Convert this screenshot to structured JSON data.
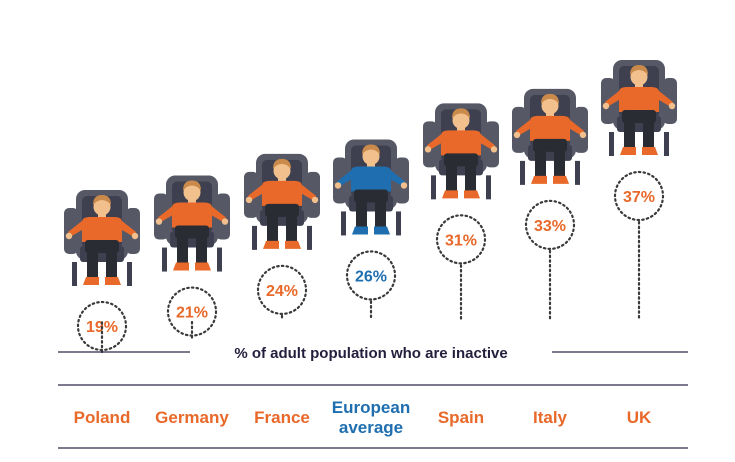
{
  "chart_data": {
    "type": "bar",
    "title": "",
    "xlabel": "% of adult population who are inactive",
    "ylabel": "",
    "categories": [
      "Poland",
      "Germany",
      "France",
      "European average",
      "Spain",
      "Italy",
      "UK"
    ],
    "category_lines": [
      [
        "Poland"
      ],
      [
        "Germany"
      ],
      [
        "France"
      ],
      [
        "European",
        "average"
      ],
      [
        "Spain"
      ],
      [
        "Italy"
      ],
      [
        "UK"
      ]
    ],
    "values": [
      19,
      21,
      24,
      26,
      31,
      33,
      37
    ],
    "value_labels": [
      "19%",
      "21%",
      "24%",
      "26%",
      "31%",
      "33%",
      "37%"
    ],
    "ylim": [
      19,
      37
    ],
    "grid": false,
    "legend": "none",
    "highlight_category": "European average",
    "colors": {
      "country": "#e8692a",
      "average": "#1f6fb0",
      "text_dark": "#231f3d",
      "rule": "#2c2a4a",
      "dots": "#3a3a3a",
      "chair": "#565866",
      "chair_dark": "#3e4050",
      "pants": "#2a2c34",
      "skin": "#f1c08d",
      "hair": "#c98a4b"
    }
  }
}
